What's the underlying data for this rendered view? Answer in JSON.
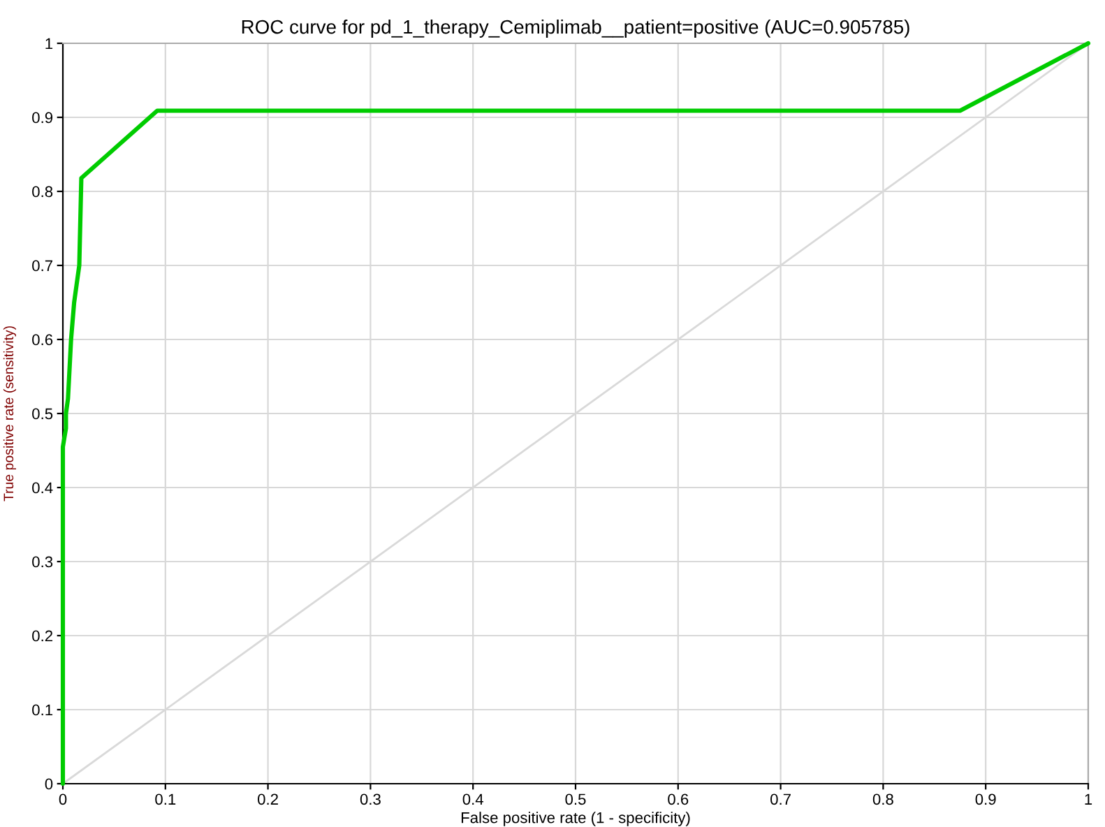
{
  "chart_data": {
    "type": "line",
    "title": "ROC curve for pd_1_therapy_Cemiplimab__patient=positive (AUC=0.905785)",
    "xlabel": "False positive rate (1 - specificity)",
    "ylabel": "True positive rate (sensitivity)",
    "series": [
      {
        "color": "#d9d9d9",
        "x": [
          0,
          1
        ],
        "values": [
          0,
          1
        ]
      },
      {
        "color": "#00cc00",
        "x": [
          0,
          0,
          0.003,
          0.003,
          0.005,
          0.008,
          0.011,
          0.014,
          0.016,
          0.018,
          0.092,
          0.875,
          1
        ],
        "values": [
          0,
          0.455,
          0.48,
          0.5,
          0.52,
          0.6,
          0.65,
          0.68,
          0.7,
          0.818,
          0.909,
          0.909,
          1
        ]
      }
    ],
    "xlim": [
      0,
      1
    ],
    "ylim": [
      0,
      1
    ],
    "xticks": [
      0,
      0.1,
      0.2,
      0.3,
      0.4,
      0.5,
      0.6,
      0.7,
      0.8,
      0.9,
      1
    ],
    "yticks": [
      0,
      0.1,
      0.2,
      0.3,
      0.4,
      0.5,
      0.6,
      0.7,
      0.8,
      0.9,
      1
    ],
    "grid": true
  }
}
